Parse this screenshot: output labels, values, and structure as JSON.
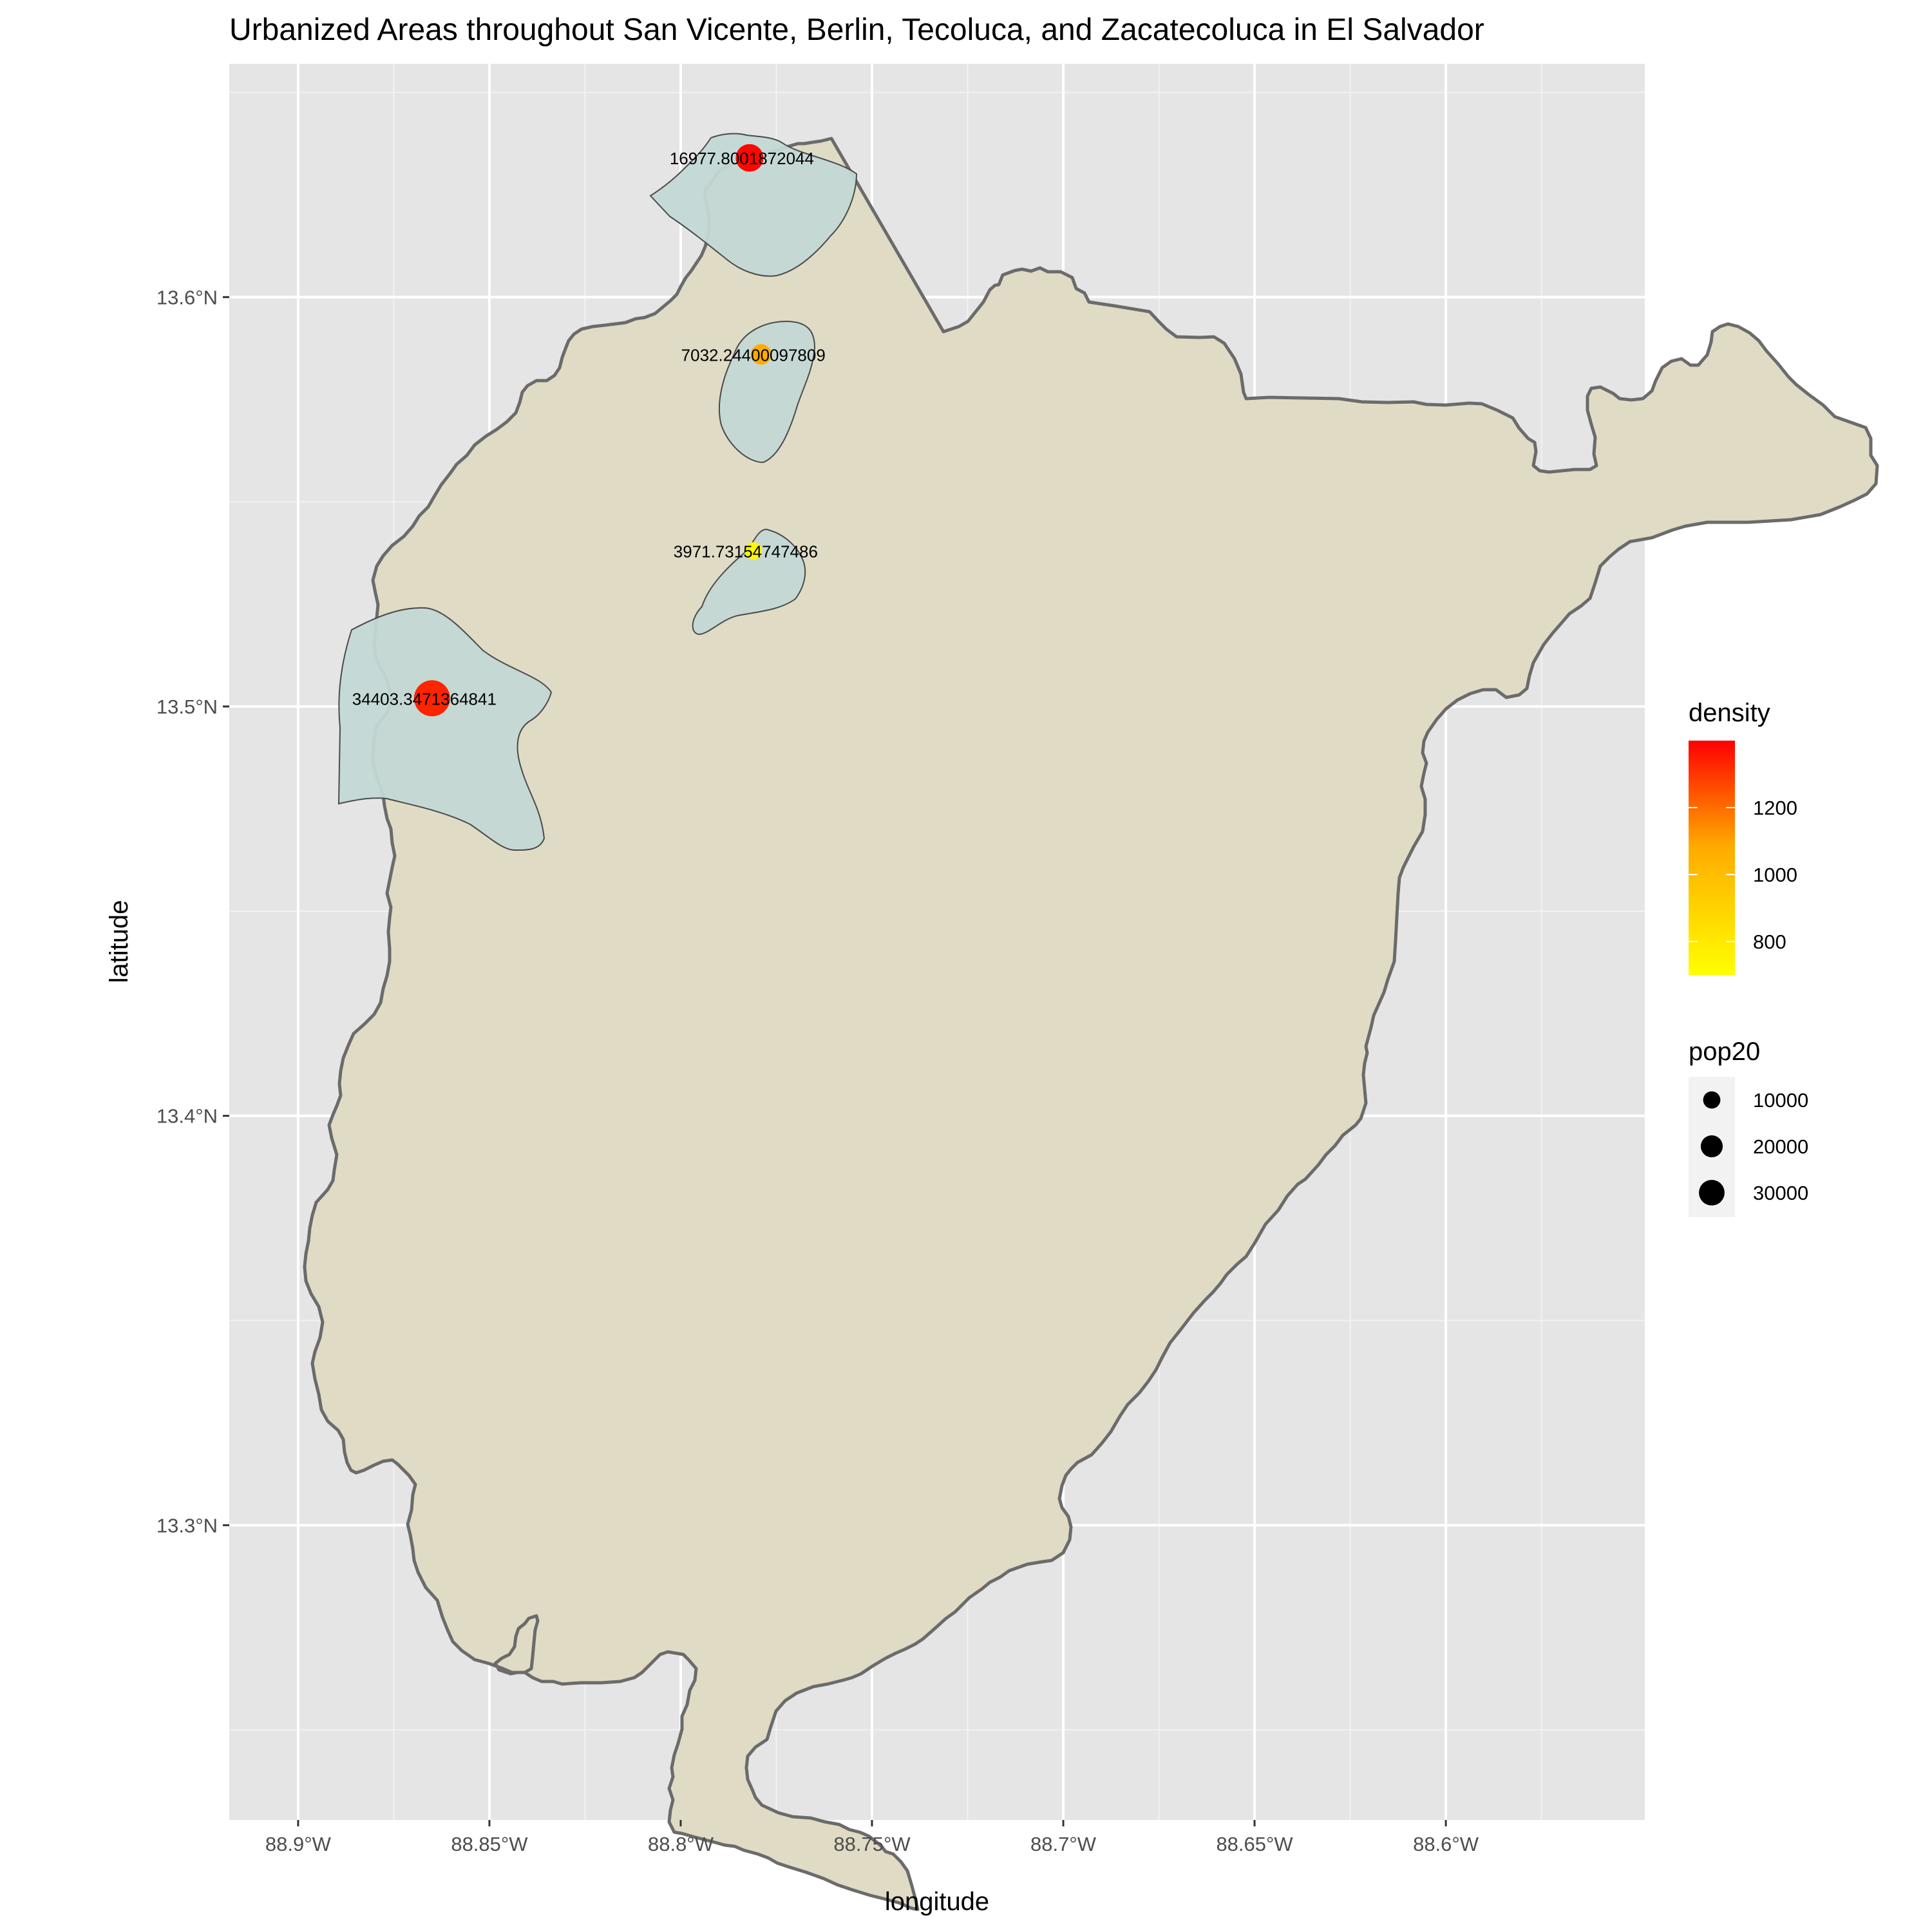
{
  "title": "Urbanized Areas throughout San Vicente, Berlin, Tecoluca, and Zacatecoluca in El Salvador",
  "xlabel": "longitude",
  "ylabel": "latitude",
  "x_ticks": [
    "88.9°W",
    "88.85°W",
    "88.8°W",
    "88.75°W",
    "88.7°W",
    "88.65°W",
    "88.6°W"
  ],
  "y_ticks": [
    "13.3°N",
    "13.4°N",
    "13.5°N",
    "13.6°N"
  ],
  "legend_density": {
    "title": "density",
    "labels": [
      "1200",
      "1000",
      "800"
    ],
    "gradient": [
      "#ffff00",
      "#ff0000"
    ]
  },
  "legend_pop": {
    "title": "pop20",
    "labels": [
      "10000",
      "20000",
      "30000"
    ]
  },
  "colors": {
    "panel": "#e5e5e5",
    "grid": "#ffffff",
    "region_fill": "#e0dbc5",
    "region_stroke": "#6b6b6b",
    "urban_fill": "#c3d8d5",
    "urban_stroke": "#4a4a4a"
  },
  "chart_data": {
    "type": "map",
    "xlim": [
      -88.918,
      -88.548
    ],
    "ylim": [
      13.228,
      13.657
    ],
    "x_ticks": [
      -88.9,
      -88.85,
      -88.8,
      -88.75,
      -88.7,
      -88.65,
      -88.6
    ],
    "y_ticks": [
      13.3,
      13.4,
      13.5,
      13.6
    ],
    "grid": true,
    "legend_position": "right",
    "points": [
      {
        "lon": -88.782,
        "lat": 13.634,
        "pop20": 16977.8,
        "density": 1380,
        "label": "16977.8001872044"
      },
      {
        "lon": -88.779,
        "lat": 13.586,
        "pop20": 7032.24,
        "density": 930,
        "label": "7032.24400097809"
      },
      {
        "lon": -88.781,
        "lat": 13.538,
        "pop20": 3971.73,
        "density": 720,
        "label": "3971.73154747486"
      },
      {
        "lon": -88.865,
        "lat": 13.502,
        "pop20": 34403.3,
        "density": 1300,
        "label": "34403.3471364841"
      }
    ]
  }
}
